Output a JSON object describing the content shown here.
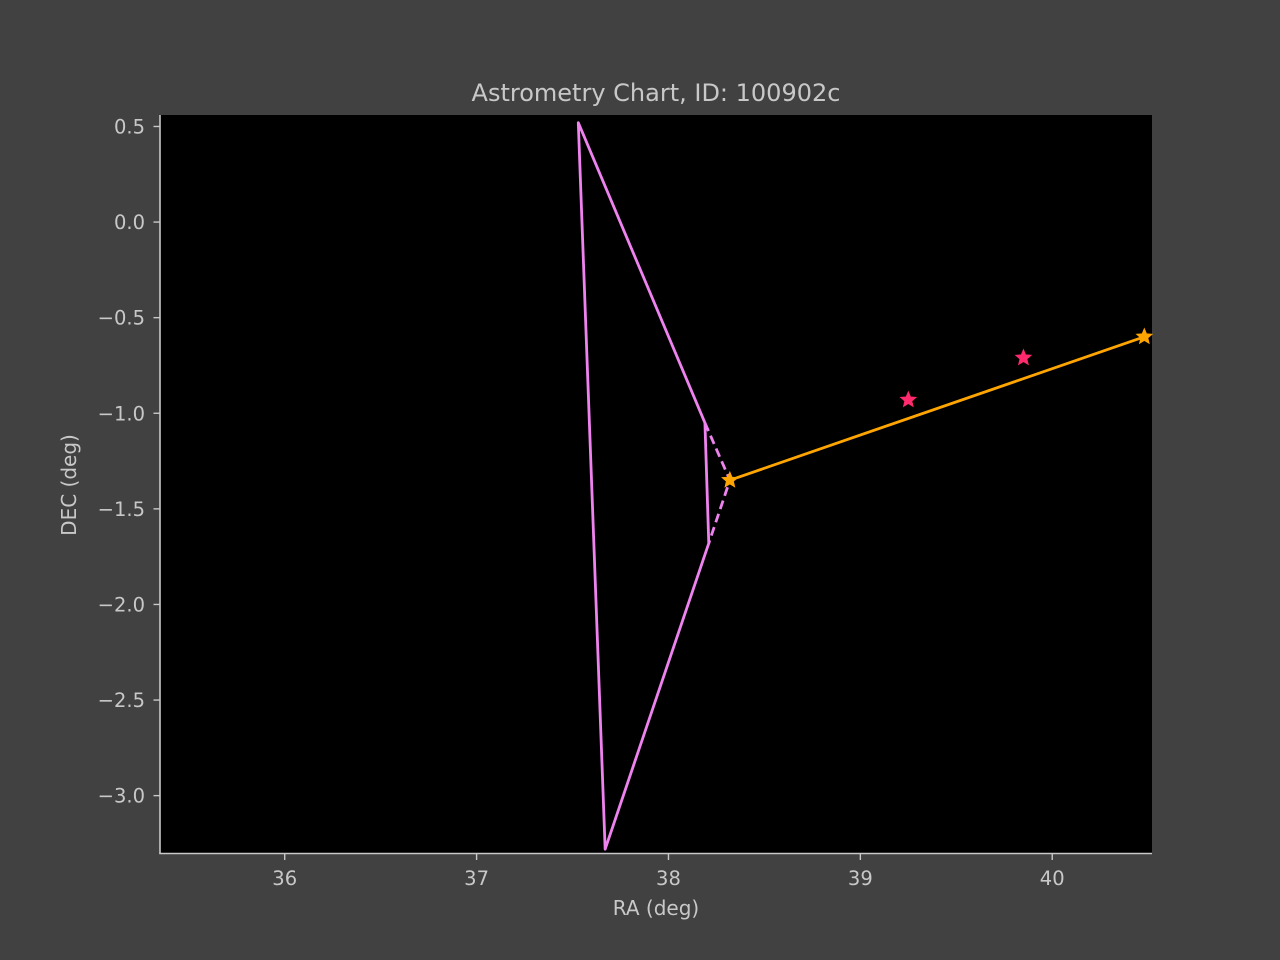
{
  "chart_data": {
    "type": "line",
    "title": "Astrometry Chart, ID: 100902c",
    "xlabel": "RA (deg)",
    "ylabel": "DEC (deg)",
    "xlim": [
      35.35,
      40.52
    ],
    "ylim": [
      -3.3,
      0.56
    ],
    "xticks": [
      36,
      37,
      38,
      39,
      40
    ],
    "yticks": [
      0.5,
      0.0,
      -0.5,
      -1.0,
      -1.5,
      -2.0,
      -2.5,
      -3.0
    ],
    "xtick_labels": [
      "36",
      "37",
      "38",
      "39",
      "40"
    ],
    "ytick_labels": [
      "0.5",
      "0.0",
      "−0.5",
      "−1.0",
      "−1.5",
      "−2.0",
      "−2.5",
      "−3.0"
    ],
    "grid": false,
    "series": [
      {
        "style": "solid",
        "color": "#ee82ee",
        "points": [
          [
            38.19,
            -1.05
          ],
          [
            37.53,
            0.52
          ],
          [
            37.67,
            -3.28
          ],
          [
            38.21,
            -1.68
          ],
          [
            38.19,
            -1.05
          ]
        ]
      },
      {
        "style": "dashed",
        "color": "#ee82ee",
        "points": [
          [
            38.19,
            -1.05
          ],
          [
            38.32,
            -1.35
          ],
          [
            38.21,
            -1.68
          ]
        ]
      },
      {
        "style": "solid",
        "color": "#ffa500",
        "points": [
          [
            38.32,
            -1.35
          ],
          [
            40.48,
            -0.6
          ]
        ],
        "markers": "star"
      },
      {
        "style": "markers",
        "color": "#ff2a6d",
        "points": [
          [
            39.25,
            -0.93
          ],
          [
            39.85,
            -0.71
          ]
        ],
        "markers": "star"
      }
    ]
  },
  "colors": {
    "figure_bg": "#414141",
    "axes_bg": "#000000",
    "spine": "#c8c8c8",
    "text": "#c8c8c8"
  }
}
